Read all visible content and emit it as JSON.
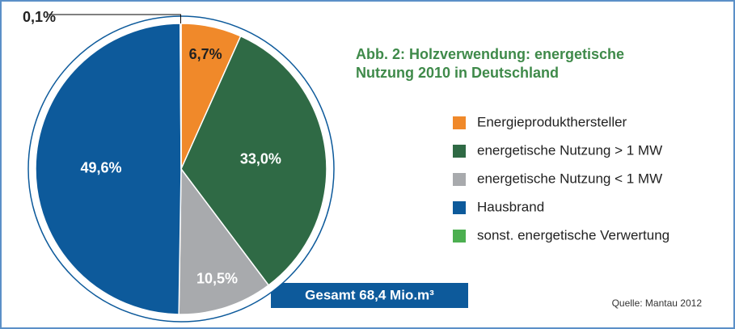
{
  "chart_data": {
    "type": "pie",
    "title": "Abb. 2: Holzverwendung: energetische Nutzung 2010 in Deutschland",
    "categories": [
      "Energieprodukthersteller",
      "energetische Nutzung > 1 MW",
      "energetische Nutzung < 1 MW",
      "Hausbrand",
      "sonst. energetische Verwertung"
    ],
    "values": [
      6.7,
      33.0,
      10.5,
      49.6,
      0.1
    ],
    "value_labels": [
      "6,7%",
      "33,0%",
      "10,5%",
      "49,6%",
      "0,1%"
    ],
    "colors": [
      "#f0892a",
      "#2f6a45",
      "#a8aaad",
      "#0d5a9b",
      "#4caf50"
    ],
    "total_label": "Gesamt 68,4 Mio.m³",
    "source": "Quelle: Mantau 2012"
  }
}
